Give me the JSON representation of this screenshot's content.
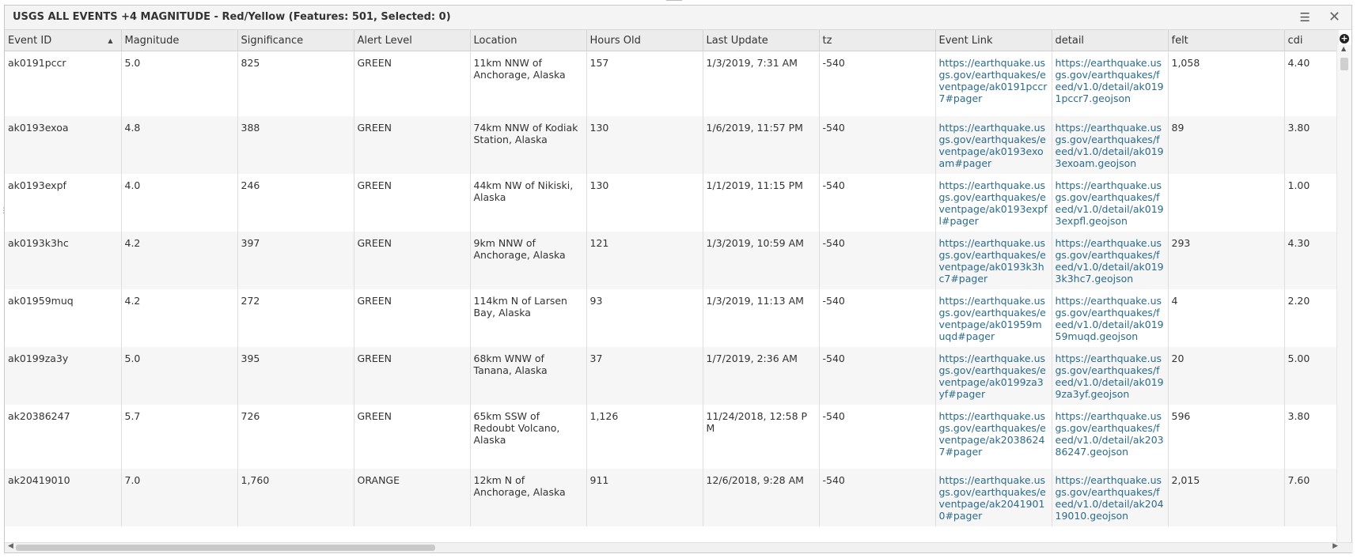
{
  "window": {
    "title": "USGS ALL EVENTS +4 MAGNITUDE - Red/Yellow (Features: 501, Selected: 0)",
    "menu_glyph": "☰",
    "close_glyph": "✕"
  },
  "table": {
    "columns": [
      "Event ID",
      "Magnitude",
      "Significance",
      "Alert Level",
      "Location",
      "Hours Old",
      "Last Update",
      "tz",
      "Event Link",
      "detail",
      "felt",
      "cdi"
    ],
    "sorted_column": "Event ID",
    "sort_direction": "ascending",
    "rows": [
      {
        "event_id": "ak0191pccr",
        "magnitude": "5.0",
        "significance": "825",
        "alert": "GREEN",
        "location": "11km NNW of Anchorage, Alaska",
        "hours_old": "157",
        "last_update": "1/3/2019, 7:31 AM",
        "tz": "-540",
        "event_link": "https://earthquake.usgs.gov/earthquakes/eventpage/ak0191pccr7#pager",
        "detail": "https://earthquake.usgs.gov/earthquakes/feed/v1.0/detail/ak0191pccr7.geojson",
        "felt": "1,058",
        "cdi": "4.40"
      },
      {
        "event_id": "ak0193exoa",
        "magnitude": "4.8",
        "significance": "388",
        "alert": "GREEN",
        "location": "74km NNW of Kodiak Station, Alaska",
        "hours_old": "130",
        "last_update": "1/6/2019, 11:57 PM",
        "tz": "-540",
        "event_link": "https://earthquake.usgs.gov/earthquakes/eventpage/ak0193exoam#pager",
        "detail": "https://earthquake.usgs.gov/earthquakes/feed/v1.0/detail/ak0193exoam.geojson",
        "felt": "89",
        "cdi": "3.80"
      },
      {
        "event_id": "ak0193expf",
        "magnitude": "4.0",
        "significance": "246",
        "alert": "GREEN",
        "location": "44km NW of Nikiski, Alaska",
        "hours_old": "130",
        "last_update": "1/1/2019, 11:15 PM",
        "tz": "-540",
        "event_link": "https://earthquake.usgs.gov/earthquakes/eventpage/ak0193expfl#pager",
        "detail": "https://earthquake.usgs.gov/earthquakes/feed/v1.0/detail/ak0193expfl.geojson",
        "felt": "",
        "cdi": "1.00"
      },
      {
        "event_id": "ak0193k3hc",
        "magnitude": "4.2",
        "significance": "397",
        "alert": "GREEN",
        "location": "9km NNW of Anchorage, Alaska",
        "hours_old": "121",
        "last_update": "1/3/2019, 10:59 AM",
        "tz": "-540",
        "event_link": "https://earthquake.usgs.gov/earthquakes/eventpage/ak0193k3hc7#pager",
        "detail": "https://earthquake.usgs.gov/earthquakes/feed/v1.0/detail/ak0193k3hc7.geojson",
        "felt": "293",
        "cdi": "4.30"
      },
      {
        "event_id": "ak01959muq",
        "magnitude": "4.2",
        "significance": "272",
        "alert": "GREEN",
        "location": "114km N of Larsen Bay, Alaska",
        "hours_old": "93",
        "last_update": "1/3/2019, 11:13 AM",
        "tz": "-540",
        "event_link": "https://earthquake.usgs.gov/earthquakes/eventpage/ak01959muqd#pager",
        "detail": "https://earthquake.usgs.gov/earthquakes/feed/v1.0/detail/ak01959muqd.geojson",
        "felt": "4",
        "cdi": "2.20"
      },
      {
        "event_id": "ak0199za3y",
        "magnitude": "5.0",
        "significance": "395",
        "alert": "GREEN",
        "location": "68km WNW of Tanana, Alaska",
        "hours_old": "37",
        "last_update": "1/7/2019, 2:36 AM",
        "tz": "-540",
        "event_link": "https://earthquake.usgs.gov/earthquakes/eventpage/ak0199za3yf#pager",
        "detail": "https://earthquake.usgs.gov/earthquakes/feed/v1.0/detail/ak0199za3yf.geojson",
        "felt": "20",
        "cdi": "5.00"
      },
      {
        "event_id": "ak20386247",
        "magnitude": "5.7",
        "significance": "726",
        "alert": "GREEN",
        "location": "65km SSW of Redoubt Volcano, Alaska",
        "hours_old": "1,126",
        "last_update": "11/24/2018, 12:58 PM",
        "tz": "-540",
        "event_link": "https://earthquake.usgs.gov/earthquakes/eventpage/ak20386247#pager",
        "detail": "https://earthquake.usgs.gov/earthquakes/feed/v1.0/detail/ak20386247.geojson",
        "felt": "596",
        "cdi": "3.80"
      },
      {
        "event_id": "ak20419010",
        "magnitude": "7.0",
        "significance": "1,760",
        "alert": "ORANGE",
        "location": "12km N of Anchorage, Alaska",
        "hours_old": "911",
        "last_update": "12/6/2018, 9:28 AM",
        "tz": "-540",
        "event_link": "https://earthquake.usgs.gov/earthquakes/eventpage/ak20419010#pager",
        "detail": "https://earthquake.usgs.gov/earthquakes/feed/v1.0/detail/ak20419010.geojson",
        "felt": "2,015",
        "cdi": "7.60"
      }
    ]
  },
  "icons": {
    "sort": "▲",
    "add_column": "+",
    "scroll_up": "▲",
    "scroll_left": "◀",
    "scroll_right": "▶"
  },
  "colors": {
    "link": "#2b6b8c",
    "header_bg": "#ececec"
  }
}
